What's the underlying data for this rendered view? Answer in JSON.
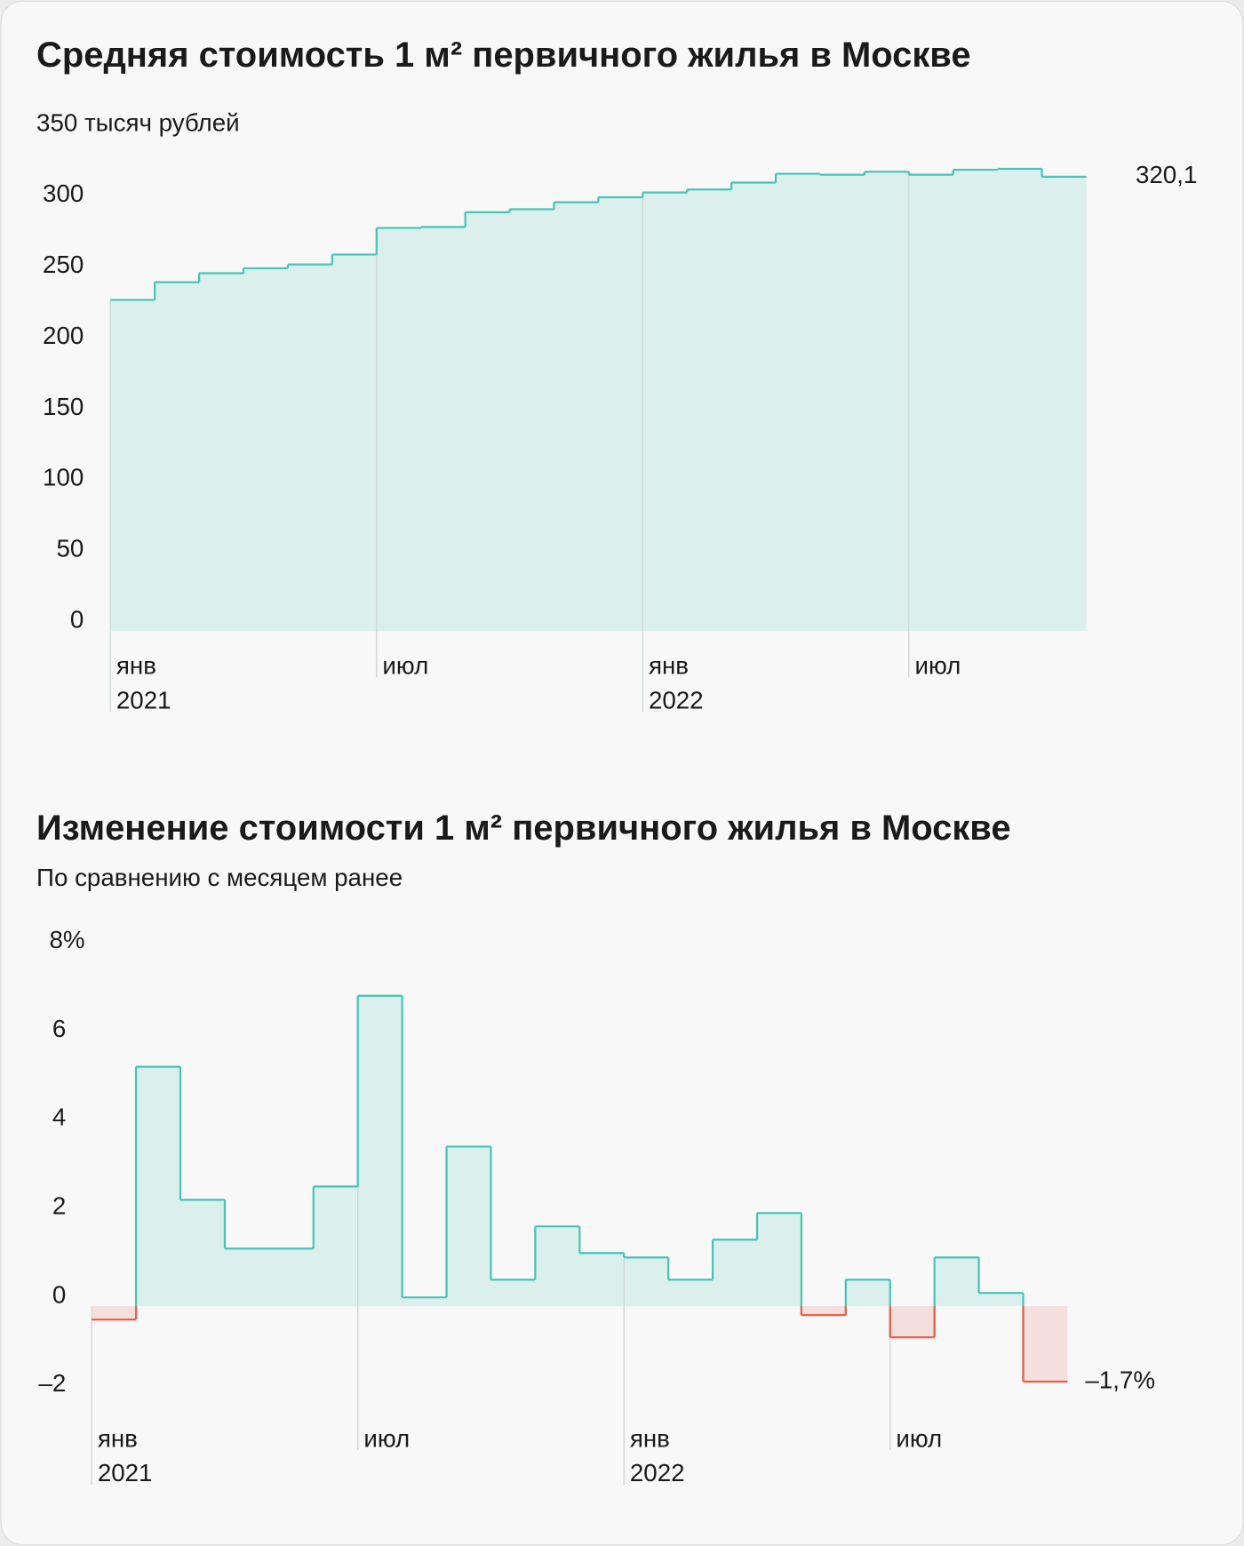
{
  "chart_data": [
    {
      "type": "step",
      "title": "Средняя стоимость 1 м² первичного жилья в Москве",
      "categories": [
        "янв",
        null,
        null,
        null,
        null,
        null,
        "июл",
        null,
        null,
        null,
        null,
        null,
        "янв",
        null,
        null,
        null,
        null,
        null,
        "июл",
        null,
        null,
        null
      ],
      "year_labels": [
        "2021",
        null,
        null,
        null,
        null,
        null,
        null,
        null,
        null,
        null,
        null,
        null,
        "2022",
        null,
        null,
        null,
        null,
        null,
        null,
        null,
        null,
        null
      ],
      "values": [
        233.3,
        245.8,
        252.1,
        255.6,
        258.3,
        265.3,
        284.0,
        284.7,
        295.1,
        297.2,
        302.1,
        305.6,
        309.0,
        311.1,
        316.0,
        322.2,
        321.5,
        323.6,
        321.5,
        325.0,
        325.7,
        320.1
      ],
      "color": "#46c3b6",
      "negative_color": "#e8604c",
      "ylim": [
        0,
        350
      ],
      "yticks": [
        0,
        50,
        100,
        150,
        200,
        250,
        300,
        {
          "value": 350,
          "label": "350 тысяч рублей"
        }
      ],
      "end_label": "320,1"
    },
    {
      "type": "step",
      "title": "Изменение стоимости 1 м² первичного жилья в Москве",
      "subtitle": "По сравнению с месяцем ранее",
      "categories": [
        "янв",
        null,
        null,
        null,
        null,
        null,
        "июл",
        null,
        null,
        null,
        null,
        null,
        "янв",
        null,
        null,
        null,
        null,
        null,
        "июл",
        null,
        null,
        null
      ],
      "year_labels": [
        "2021",
        null,
        null,
        null,
        null,
        null,
        null,
        null,
        null,
        null,
        null,
        null,
        "2022",
        null,
        null,
        null,
        null,
        null,
        null,
        null,
        null,
        null
      ],
      "values": [
        -0.3,
        5.4,
        2.4,
        1.3,
        1.3,
        2.7,
        7.0,
        0.2,
        3.6,
        0.6,
        1.8,
        1.2,
        1.1,
        0.6,
        1.5,
        2.1,
        -0.2,
        0.6,
        -0.7,
        1.1,
        0.3,
        -1.7
      ],
      "color": "#46c3b6",
      "negative_color": "#e8604c",
      "ylim": [
        -2,
        8
      ],
      "yticks": [
        {
          "value": -2,
          "label": "–2"
        },
        0,
        2,
        4,
        6,
        {
          "value": 8,
          "label": "8%"
        }
      ],
      "end_label": "–1,7%"
    }
  ]
}
